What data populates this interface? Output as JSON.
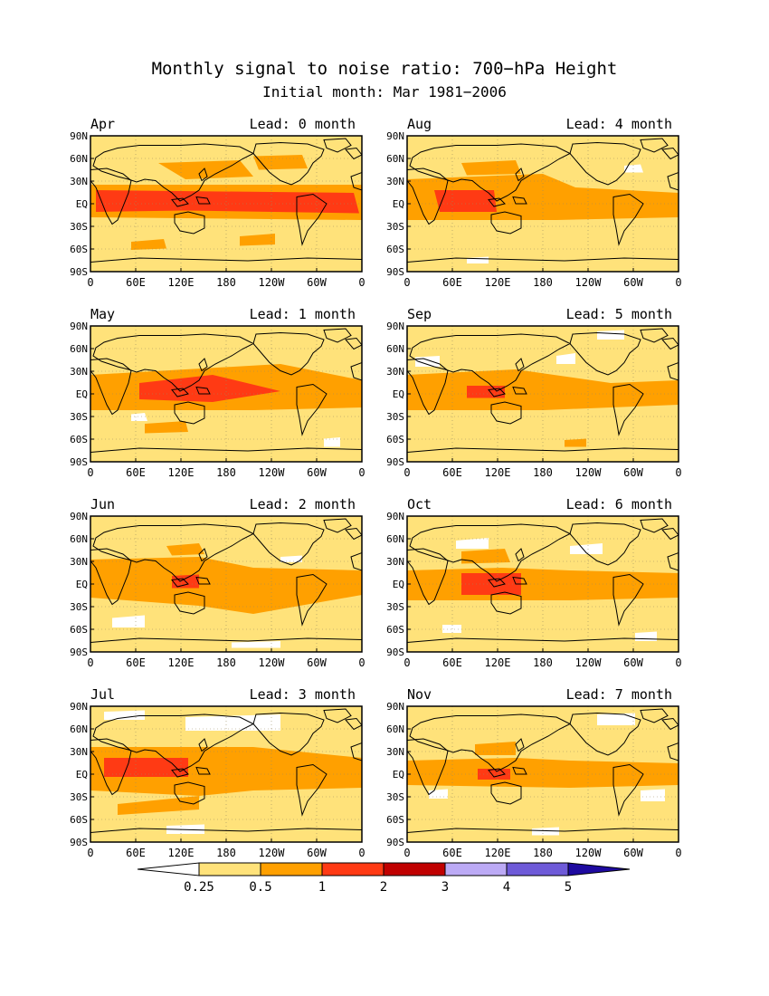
{
  "title": "Monthly signal to noise ratio: 700−hPa Height",
  "subtitle": "Initial month: Mar 1981−2006",
  "lat_labels": [
    "90N",
    "60N",
    "30N",
    "EQ",
    "30S",
    "60S",
    "90S"
  ],
  "lon_labels": [
    "0",
    "60E",
    "120E",
    "180",
    "120W",
    "60W",
    "0"
  ],
  "panels": [
    {
      "month": "Apr",
      "lead": "Lead: 0 month"
    },
    {
      "month": "Aug",
      "lead": "Lead: 4 month"
    },
    {
      "month": "May",
      "lead": "Lead: 1 month"
    },
    {
      "month": "Sep",
      "lead": "Lead: 5 month"
    },
    {
      "month": "Jun",
      "lead": "Lead: 2 month"
    },
    {
      "month": "Oct",
      "lead": "Lead: 6 month"
    },
    {
      "month": "Jul",
      "lead": "Lead: 3 month"
    },
    {
      "month": "Nov",
      "lead": "Lead: 7 month"
    }
  ],
  "colorbar": {
    "colors": [
      "#ffffff",
      "#ffe27a",
      "#ffa000",
      "#ff3a14",
      "#c00000",
      "#bcaaf5",
      "#6e5ad8",
      "#1e0aa0"
    ],
    "labels": [
      "0.25",
      "0.5",
      "1",
      "2",
      "3",
      "4",
      "5"
    ]
  },
  "colors": {
    "low": "#ffffff",
    "weak": "#ffe27a",
    "moderate": "#ffa000",
    "strong": "#ff3a14",
    "land_outline": "#000000"
  }
}
